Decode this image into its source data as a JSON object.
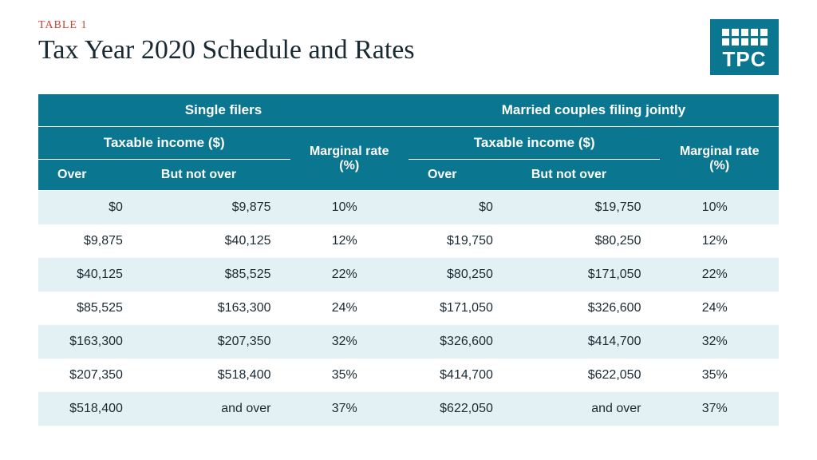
{
  "header": {
    "table_label": "TABLE 1",
    "table_label_color": "#c44536",
    "title": "Tax Year 2020 Schedule and Rates",
    "logo_text": "TPC",
    "logo_bg": "#0a7690"
  },
  "table": {
    "type": "table",
    "header_bg": "#0a7690",
    "header_text_color": "#ffffff",
    "row_odd_bg": "#e4f1f4",
    "row_even_bg": "#ffffff",
    "groups": [
      {
        "label": "Single filers",
        "income_label": "Taxable income ($)",
        "rate_label": "Marginal rate (%)",
        "over_label": "Over",
        "notover_label": "But not over"
      },
      {
        "label": "Married couples filing jointly",
        "income_label": "Taxable income ($)",
        "rate_label": "Marginal rate (%)",
        "over_label": "Over",
        "notover_label": "But not over"
      }
    ],
    "rows": [
      {
        "s_over": "$0",
        "s_notover": "$9,875",
        "s_rate": "10%",
        "m_over": "$0",
        "m_notover": "$19,750",
        "m_rate": "10%"
      },
      {
        "s_over": "$9,875",
        "s_notover": "$40,125",
        "s_rate": "12%",
        "m_over": "$19,750",
        "m_notover": "$80,250",
        "m_rate": "12%"
      },
      {
        "s_over": "$40,125",
        "s_notover": "$85,525",
        "s_rate": "22%",
        "m_over": "$80,250",
        "m_notover": "$171,050",
        "m_rate": "22%"
      },
      {
        "s_over": "$85,525",
        "s_notover": "$163,300",
        "s_rate": "24%",
        "m_over": "$171,050",
        "m_notover": "$326,600",
        "m_rate": "24%"
      },
      {
        "s_over": "$163,300",
        "s_notover": "$207,350",
        "s_rate": "32%",
        "m_over": "$326,600",
        "m_notover": "$414,700",
        "m_rate": "32%"
      },
      {
        "s_over": "$207,350",
        "s_notover": "$518,400",
        "s_rate": "35%",
        "m_over": "$414,700",
        "m_notover": "$622,050",
        "m_rate": "35%"
      },
      {
        "s_over": "$518,400",
        "s_notover": "and over",
        "s_rate": "37%",
        "m_over": "$622,050",
        "m_notover": "and over",
        "m_rate": "37%"
      }
    ]
  }
}
